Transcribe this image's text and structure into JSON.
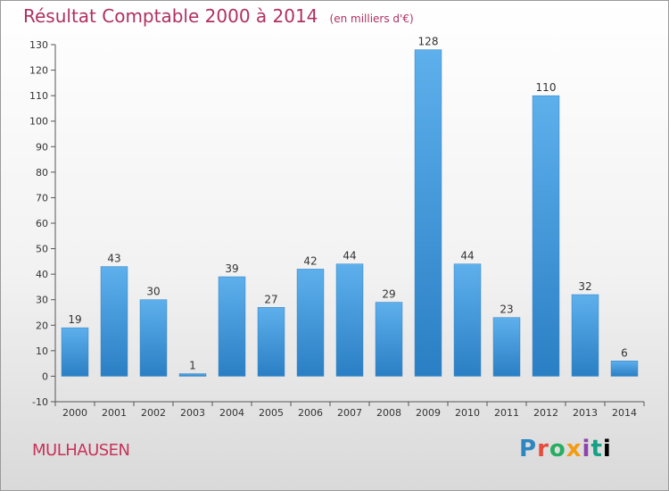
{
  "chart_data": {
    "type": "bar",
    "title": "Résultat Comptable 2000 à 2014",
    "subtitle": "(en milliers d'€)",
    "xlabel": "",
    "ylabel": "",
    "categories": [
      "2000",
      "2001",
      "2002",
      "2003",
      "2004",
      "2005",
      "2006",
      "2007",
      "2008",
      "2009",
      "2010",
      "2011",
      "2012",
      "2013",
      "2014"
    ],
    "values": [
      19,
      43,
      30,
      1,
      39,
      27,
      42,
      44,
      29,
      128,
      44,
      23,
      110,
      32,
      6
    ],
    "ylim": [
      -10,
      130
    ],
    "yticks": [
      -10,
      0,
      10,
      20,
      30,
      40,
      50,
      60,
      70,
      80,
      90,
      100,
      110,
      120,
      130
    ],
    "grid": false,
    "bar_color": "#4a9fe0"
  },
  "footer": {
    "city": "MULHAUSEN",
    "logo_letters": [
      "P",
      "r",
      "o",
      "x",
      "i",
      "t",
      "i"
    ]
  },
  "colors": {
    "title": "#b03060",
    "city": "#c8325a"
  }
}
